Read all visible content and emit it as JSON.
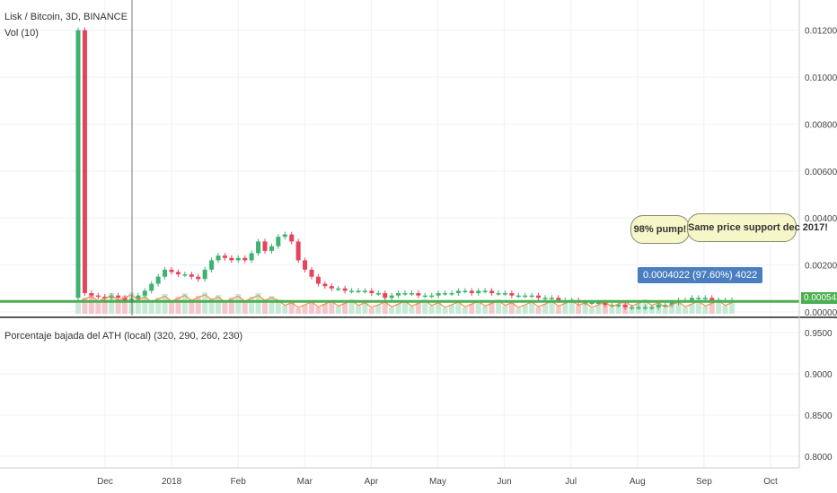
{
  "header": {
    "symbol": "Lisk / Bitcoin, 3D, BINANCE",
    "volume_indicator": "Vol (10)"
  },
  "indicator_pane": {
    "title": "Porcentaje bajada del ATH (local) (320, 290, 260, 230)"
  },
  "annotations": {
    "bubble_1": "98% pump!",
    "bubble_2": "Same price support dec 2017!",
    "measure": "0.0004022 (97.60%) 4022",
    "last_price": "0.0005430"
  },
  "colors": {
    "up": "#3cb371",
    "down": "#e8435a",
    "support": "#4caf50",
    "ma": "#f28c4a"
  },
  "chart_data": [
    {
      "type": "candlestick",
      "title": "Lisk / Bitcoin, 3D, BINANCE",
      "x_ticks": [
        "Dec",
        "2018",
        "Feb",
        "Mar",
        "Apr",
        "May",
        "Jun",
        "Jul",
        "Aug",
        "Sep",
        "Oct"
      ],
      "y_ticks": [
        "0.0120000",
        "0.0100000",
        "0.0080000",
        "0.0060000",
        "0.0040000",
        "0.0020000",
        "0.0000000"
      ],
      "ylim": [
        0,
        0.0126
      ],
      "support_level": 0.00045,
      "series": [
        {
          "name": "price",
          "close": [
            0.012,
            0.0008,
            0.0007,
            0.00065,
            0.0006,
            0.0007,
            0.0006,
            0.0005,
            0.00055,
            0.0007,
            0.0009,
            0.0012,
            0.0015,
            0.0018,
            0.0017,
            0.0016,
            0.0016,
            0.0015,
            0.0014,
            0.0018,
            0.0022,
            0.0024,
            0.0023,
            0.0022,
            0.0023,
            0.0022,
            0.0025,
            0.003,
            0.0026,
            0.0028,
            0.0032,
            0.0033,
            0.003,
            0.0022,
            0.0018,
            0.0015,
            0.0012,
            0.0011,
            0.001,
            0.001,
            0.0009,
            0.0009,
            0.0009,
            0.0009,
            0.0008,
            0.0008,
            0.0006,
            0.0007,
            0.0008,
            0.0008,
            0.0008,
            0.0007,
            0.0007,
            0.0007,
            0.0008,
            0.0008,
            0.0008,
            0.0009,
            0.0009,
            0.0008,
            0.0009,
            0.0009,
            0.0008,
            0.0008,
            0.0008,
            0.0007,
            0.0007,
            0.0007,
            0.0007,
            0.0006,
            0.0006,
            0.0006,
            0.0005,
            0.0005,
            0.0005,
            0.0004,
            0.0004,
            0.0004,
            0.0004,
            0.0003,
            0.0003,
            0.0003,
            0.0002,
            0.0002,
            0.0002,
            0.0002,
            0.0002,
            0.0003,
            0.0003,
            0.0004,
            0.0005,
            0.0005,
            0.0006,
            0.0006,
            0.0006,
            0.0005,
            0.0005,
            0.0005,
            0.0005
          ]
        }
      ]
    },
    {
      "type": "line",
      "title": "Porcentaje bajada del ATH (local) (320, 290, 260, 230)",
      "y_ticks": [
        "0.9500",
        "0.9000",
        "0.8500",
        "0.8000"
      ],
      "series": []
    }
  ]
}
